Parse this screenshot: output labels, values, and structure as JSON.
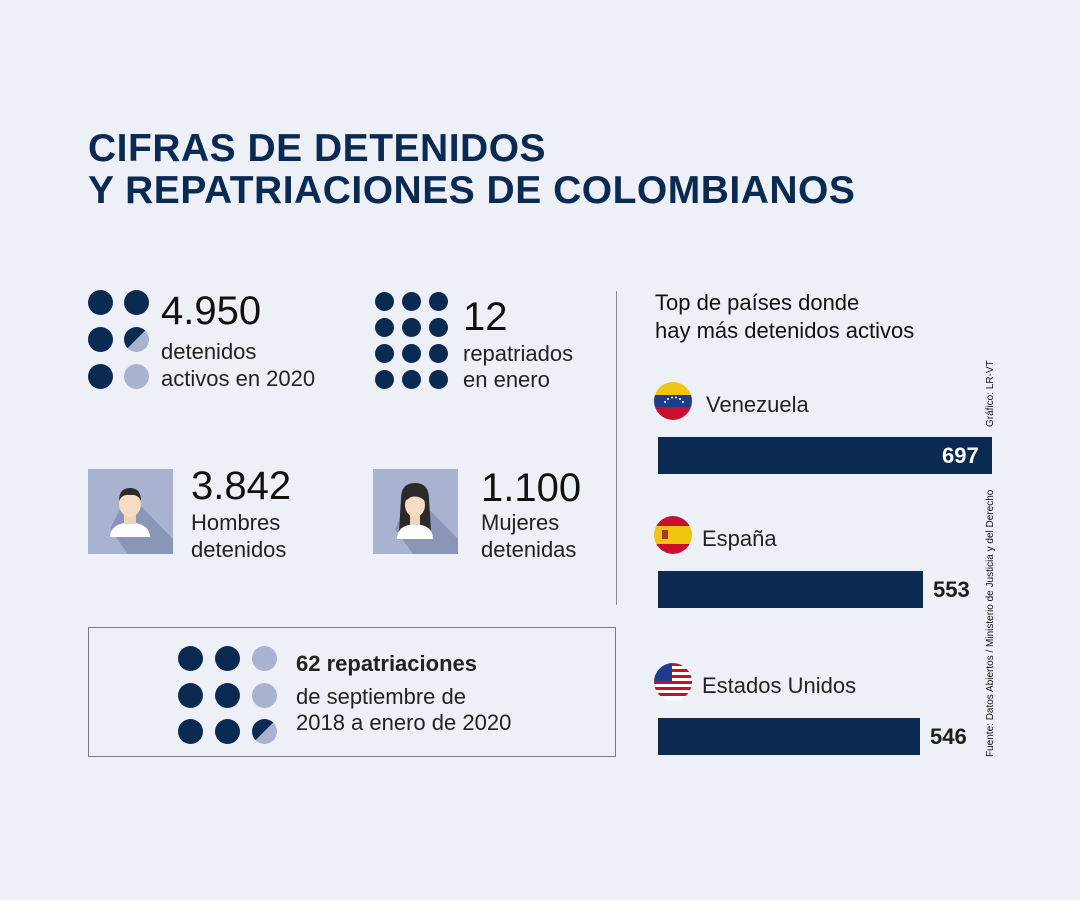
{
  "title": {
    "line1": "CIFRAS DE DETENIDOS",
    "line2": "Y REPATRIACIONES DE COLOMBIANOS"
  },
  "stats": {
    "active_detainees": {
      "value": "4.950",
      "label_line1": "detenidos",
      "label_line2": "activos en 2020"
    },
    "repatriated_january": {
      "value": "12",
      "label_line1": "repatriados",
      "label_line2": "en enero"
    },
    "men": {
      "value": "3.842",
      "label_line1": "Hombres",
      "label_line2": "detenidos",
      "icon": "man-avatar-icon"
    },
    "women": {
      "value": "1.100",
      "label_line1": "Mujeres",
      "label_line2": "detenidas",
      "icon": "woman-avatar-icon"
    },
    "repatriations_period": {
      "headline": "62 repatriaciones",
      "label_line1": "de septiembre de",
      "label_line2": "2018 a enero de 2020"
    }
  },
  "colors": {
    "navy": "#0b2a52",
    "light": "#a9b2ce",
    "background": "#edf1f7"
  },
  "chart_data": {
    "type": "bar",
    "orientation": "horizontal",
    "title": "Top de países donde hay más detenidos activos",
    "title_line1": "Top de países donde",
    "title_line2": "hay más detenidos activos",
    "categories": [
      "Venezuela",
      "España",
      "Estados Unidos"
    ],
    "values": [
      697,
      553,
      546
    ],
    "value_labels": [
      "697",
      "553",
      "546"
    ],
    "flags": [
      "venezuela-flag-icon",
      "spain-flag-icon",
      "usa-flag-icon"
    ],
    "xlim": [
      0,
      697
    ]
  },
  "credits": {
    "graphic": "Gráfico: LR-VT",
    "source": "Fuente: Datos Abiertos / Ministerio de Justicia y del Derecho"
  }
}
